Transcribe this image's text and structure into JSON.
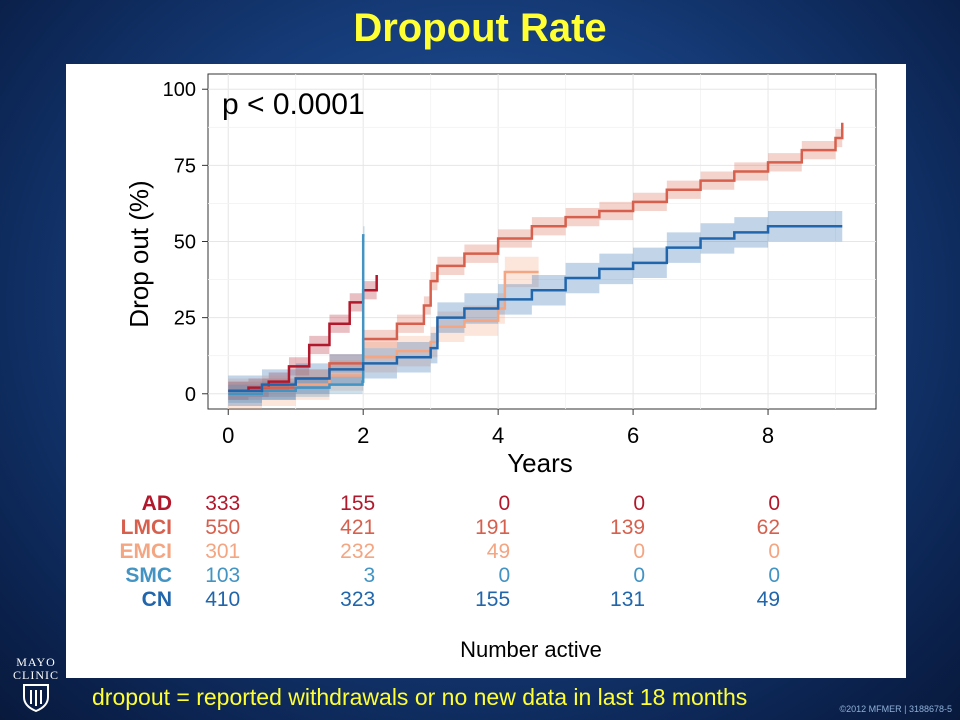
{
  "slide": {
    "title": "Dropout Rate",
    "footnote": "dropout = reported withdrawals or no new data in last 18 months",
    "copyright": "©2012 MFMER  |  3188678-5",
    "logo": {
      "line1": "MAYO",
      "line2": "CLINIC"
    }
  },
  "colors": {
    "AD": "#b2182b",
    "LMCI": "#d6604d",
    "EMCI": "#f4a582",
    "SMC": "#4393c3",
    "CN": "#2166ac",
    "title": "#ffff33",
    "background": "#173f7e"
  },
  "chart_data": {
    "type": "line",
    "annotation": "p < 0.0001",
    "xlabel": "Years",
    "ylabel": "Drop out (%)",
    "xlim": [
      -0.3,
      9.6
    ],
    "ylim": [
      -5,
      105
    ],
    "xticks": [
      0,
      2,
      4,
      6,
      8
    ],
    "yticks": [
      0,
      25,
      50,
      75,
      100
    ],
    "grid": true,
    "series": [
      {
        "name": "AD",
        "color": "#b2182b",
        "x": [
          0,
          0.3,
          0.6,
          0.9,
          1.2,
          1.5,
          1.8,
          2.0,
          2.2
        ],
        "y": [
          1,
          2,
          4,
          9,
          16,
          23,
          30,
          34,
          39
        ],
        "band": 3
      },
      {
        "name": "LMCI",
        "color": "#d6604d",
        "x": [
          0,
          0.5,
          1.0,
          1.5,
          2.0,
          2.5,
          2.9,
          3.0,
          3.1,
          3.5,
          4.0,
          4.5,
          5.0,
          5.5,
          6.0,
          6.5,
          7.0,
          7.5,
          8.0,
          8.5,
          9.0,
          9.1
        ],
        "y": [
          1,
          2,
          5,
          10,
          18,
          23,
          29,
          37,
          42,
          46,
          51,
          55,
          58,
          60,
          63,
          67,
          70,
          73,
          76,
          80,
          84,
          89
        ],
        "band": 3
      },
      {
        "name": "EMCI",
        "color": "#f4a582",
        "x": [
          0,
          0.5,
          1.0,
          1.5,
          2.0,
          2.5,
          3.0,
          3.1,
          3.5,
          4.0,
          4.1,
          4.6
        ],
        "y": [
          0,
          1,
          3,
          6,
          12,
          14,
          17,
          22,
          24,
          28,
          40,
          40
        ],
        "band": 5
      },
      {
        "name": "SMC",
        "color": "#4393c3",
        "x": [
          0,
          0.5,
          1.0,
          1.5,
          1.99,
          2.0,
          2.02
        ],
        "y": [
          0,
          1,
          2,
          3,
          4,
          52,
          52
        ],
        "band": 3
      },
      {
        "name": "CN",
        "color": "#2166ac",
        "x": [
          0,
          0.5,
          1.0,
          1.5,
          2.0,
          2.5,
          3.0,
          3.1,
          3.5,
          4.0,
          4.5,
          5.0,
          5.5,
          6.0,
          6.5,
          7.0,
          7.5,
          8.0,
          8.5,
          9.1
        ],
        "y": [
          1,
          3,
          5,
          8,
          10,
          12,
          15,
          25,
          28,
          31,
          34,
          38,
          41,
          43,
          48,
          51,
          53,
          55,
          55,
          55
        ],
        "band": 5
      }
    ],
    "risk_table": {
      "title": "Number active",
      "time_points": [
        0,
        2,
        4,
        6,
        8
      ],
      "rows": [
        {
          "label": "AD",
          "values": [
            "333",
            "155",
            "0",
            "0",
            "0"
          ]
        },
        {
          "label": "LMCI",
          "values": [
            "550",
            "421",
            "191",
            "139",
            "62"
          ]
        },
        {
          "label": "EMCI",
          "values": [
            "301",
            "232",
            "49",
            "0",
            "0"
          ]
        },
        {
          "label": "SMC",
          "values": [
            "103",
            "3",
            "0",
            "0",
            "0"
          ]
        },
        {
          "label": "CN",
          "values": [
            "410",
            "323",
            "155",
            "131",
            "49"
          ]
        }
      ]
    }
  }
}
